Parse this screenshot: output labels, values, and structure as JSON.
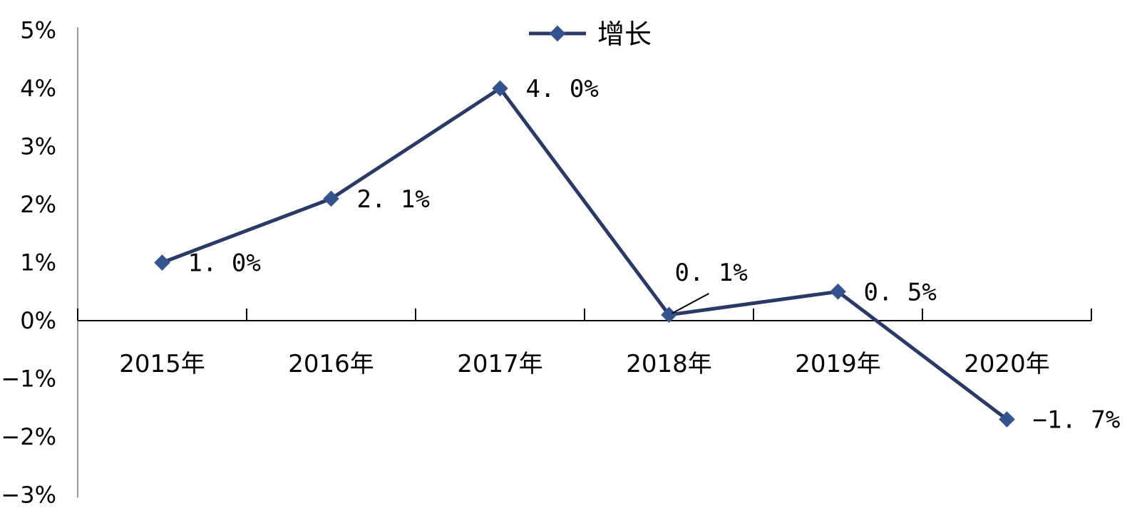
{
  "chart_data": {
    "type": "line",
    "categories": [
      "2015年",
      "2016年",
      "2017年",
      "2018年",
      "2019年",
      "2020年"
    ],
    "series": [
      {
        "name": "增长",
        "values": [
          1.0,
          2.1,
          4.0,
          0.1,
          0.5,
          -1.7
        ],
        "data_labels": [
          "1. 0%",
          "2. 1%",
          "4. 0%",
          "0. 1%",
          "0. 5%",
          "−1. 7%"
        ]
      }
    ],
    "y_ticks": [
      5,
      4,
      3,
      2,
      1,
      0,
      -1,
      -2,
      -3
    ],
    "y_tick_labels": [
      "5%",
      "4%",
      "3%",
      "2%",
      "1%",
      "0%",
      "−1%",
      "−2%",
      "−3%"
    ],
    "ylim": [
      -3,
      5
    ],
    "legend_position": "top-center",
    "grid": false,
    "colors": {
      "line": "#2a3a66",
      "marker": "#34548f"
    }
  }
}
